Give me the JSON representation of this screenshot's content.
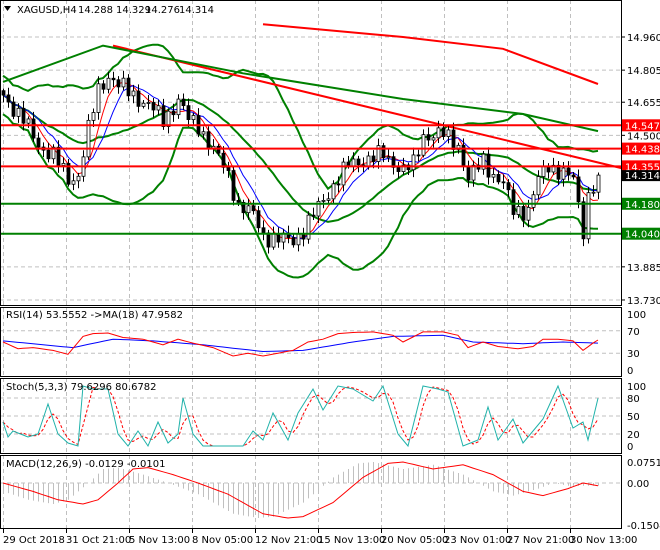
{
  "header": {
    "symbol": "XAGUSD,H4",
    "open": "14.288",
    "high": "14.329",
    "low": "14.276",
    "close": "14.314"
  },
  "colors": {
    "bull": "#ffffff",
    "bear": "#000000",
    "bands": "#008000",
    "resistance": "#ff0000",
    "support": "#008000",
    "rsi": "#ff0000",
    "rsi_ma": "#0000ff",
    "stoch_k": "#20b2aa",
    "stoch_d": "#ff0000",
    "macd_signal": "#ff0000",
    "macd_hist": "#c0c0c0"
  },
  "chart_data": [
    {
      "type": "candlestick",
      "title": "XAGUSD,H4",
      "ylim": [
        13.73,
        15.02
      ],
      "price_ticks": [
        "14.960",
        "14.805",
        "14.655",
        "14.500",
        "13.885",
        "13.730"
      ],
      "levels": [
        {
          "value": 14.547,
          "label": "14.547",
          "color": "#ff0000"
        },
        {
          "value": 14.438,
          "label": "14.438",
          "color": "#ff0000"
        },
        {
          "value": 14.355,
          "label": "14.355",
          "color": "#ff0000"
        },
        {
          "value": 14.18,
          "label": "14.180",
          "color": "#008000"
        },
        {
          "value": 14.04,
          "label": "14.040",
          "color": "#008000"
        }
      ],
      "current_price": {
        "value": 14.314,
        "label": "14.314"
      },
      "close_keypoints": [
        [
          0,
          14.689
        ],
        [
          4,
          14.572
        ],
        [
          7,
          14.455
        ],
        [
          10,
          14.408
        ],
        [
          13,
          14.291
        ],
        [
          15,
          14.315
        ],
        [
          17,
          14.525
        ],
        [
          19,
          14.712
        ],
        [
          21,
          14.782
        ],
        [
          23,
          14.735
        ],
        [
          26,
          14.689
        ],
        [
          29,
          14.642
        ],
        [
          32,
          14.572
        ],
        [
          35,
          14.665
        ],
        [
          37,
          14.572
        ],
        [
          39,
          14.548
        ],
        [
          42,
          14.431
        ],
        [
          45,
          14.315
        ],
        [
          47,
          14.174
        ],
        [
          50,
          14.127
        ],
        [
          52,
          14.034
        ],
        [
          55,
          14.011
        ],
        [
          58,
          14.011
        ],
        [
          60,
          14.057
        ],
        [
          62,
          14.127
        ],
        [
          64,
          14.198
        ],
        [
          66,
          14.268
        ],
        [
          69,
          14.361
        ],
        [
          72,
          14.385
        ],
        [
          76,
          14.408
        ],
        [
          80,
          14.338
        ],
        [
          82,
          14.361
        ],
        [
          84,
          14.502
        ],
        [
          88,
          14.502
        ],
        [
          91,
          14.455
        ],
        [
          93,
          14.291
        ],
        [
          96,
          14.385
        ],
        [
          98,
          14.315
        ],
        [
          100,
          14.268
        ],
        [
          102,
          14.151
        ],
        [
          105,
          14.151
        ],
        [
          107,
          14.291
        ],
        [
          109,
          14.361
        ],
        [
          111,
          14.338
        ],
        [
          114,
          14.291
        ],
        [
          116,
          14.057
        ],
        [
          117,
          14.221
        ],
        [
          119,
          14.314
        ]
      ],
      "trendlines": [
        {
          "name": "red-long-ma",
          "color": "#ff0000",
          "points": [
            [
              52,
              15.02
            ],
            [
              80,
              14.96
            ],
            [
              100,
              14.905
            ],
            [
              119,
              14.74
            ]
          ]
        },
        {
          "name": "red-trendline",
          "color": "#ff0000",
          "points": [
            [
              22,
              14.92
            ],
            [
              124,
              14.345
            ]
          ]
        },
        {
          "name": "green-long-ma",
          "color": "#008000",
          "points": [
            [
              0,
              14.75
            ],
            [
              20,
              14.92
            ],
            [
              48,
              14.79
            ],
            [
              80,
              14.67
            ],
            [
              104,
              14.6
            ],
            [
              119,
              14.52
            ]
          ]
        }
      ]
    },
    {
      "type": "line",
      "title": "RSI(14) 53.5552  ->MA(18) 47.9582",
      "ylim": [
        0,
        100
      ],
      "ticks": [
        "100",
        "70",
        "30",
        "0"
      ],
      "series": [
        {
          "name": "RSI(14)",
          "points": [
            [
              0,
              50
            ],
            [
              3,
              38
            ],
            [
              6,
              40
            ],
            [
              10,
              35
            ],
            [
              13,
              28
            ],
            [
              16,
              60
            ],
            [
              18,
              65
            ],
            [
              21,
              66
            ],
            [
              24,
              58
            ],
            [
              28,
              55
            ],
            [
              32,
              45
            ],
            [
              35,
              55
            ],
            [
              38,
              48
            ],
            [
              42,
              40
            ],
            [
              46,
              25
            ],
            [
              49,
              30
            ],
            [
              52,
              25
            ],
            [
              55,
              30
            ],
            [
              58,
              35
            ],
            [
              61,
              50
            ],
            [
              64,
              55
            ],
            [
              67,
              65
            ],
            [
              70,
              67
            ],
            [
              74,
              68
            ],
            [
              78,
              62
            ],
            [
              80,
              50
            ],
            [
              84,
              68
            ],
            [
              88,
              68
            ],
            [
              91,
              62
            ],
            [
              93,
              40
            ],
            [
              96,
              50
            ],
            [
              99,
              42
            ],
            [
              103,
              38
            ],
            [
              106,
              42
            ],
            [
              108,
              55
            ],
            [
              111,
              55
            ],
            [
              114,
              52
            ],
            [
              116,
              35
            ],
            [
              118,
              48
            ],
            [
              119,
              53.6
            ]
          ]
        },
        {
          "name": "MA(18)",
          "points": [
            [
              0,
              52
            ],
            [
              8,
              45
            ],
            [
              14,
              40
            ],
            [
              22,
              55
            ],
            [
              30,
              52
            ],
            [
              40,
              45
            ],
            [
              52,
              33
            ],
            [
              60,
              35
            ],
            [
              70,
              50
            ],
            [
              78,
              60
            ],
            [
              88,
              62
            ],
            [
              94,
              50
            ],
            [
              104,
              47
            ],
            [
              112,
              50
            ],
            [
              119,
              48
            ]
          ]
        }
      ]
    },
    {
      "type": "line",
      "title": "Stoch(5,3,3) 79.6296 80.6782",
      "ylim": [
        0,
        100
      ],
      "ticks": [
        "100",
        "80",
        "50",
        "20",
        "0"
      ],
      "series": [
        {
          "name": "%K",
          "points": [
            [
              0,
              40
            ],
            [
              1,
              15
            ],
            [
              2,
              25
            ],
            [
              5,
              15
            ],
            [
              7,
              20
            ],
            [
              9,
              70
            ],
            [
              11,
              20
            ],
            [
              13,
              5
            ],
            [
              15,
              0
            ],
            [
              16,
              100
            ],
            [
              18,
              95
            ],
            [
              21,
              95
            ],
            [
              23,
              20
            ],
            [
              25,
              0
            ],
            [
              27,
              25
            ],
            [
              29,
              0
            ],
            [
              31,
              40
            ],
            [
              33,
              5
            ],
            [
              35,
              20
            ],
            [
              36,
              80
            ],
            [
              38,
              20
            ],
            [
              40,
              0
            ],
            [
              48,
              0
            ],
            [
              50,
              25
            ],
            [
              52,
              10
            ],
            [
              54,
              55
            ],
            [
              57,
              10
            ],
            [
              59,
              55
            ],
            [
              62,
              95
            ],
            [
              64,
              60
            ],
            [
              67,
              100
            ],
            [
              70,
              95
            ],
            [
              74,
              75
            ],
            [
              76,
              100
            ],
            [
              79,
              20
            ],
            [
              81,
              0
            ],
            [
              84,
              100
            ],
            [
              87,
              95
            ],
            [
              89,
              90
            ],
            [
              92,
              0
            ],
            [
              95,
              10
            ],
            [
              97,
              65
            ],
            [
              99,
              10
            ],
            [
              102,
              45
            ],
            [
              104,
              5
            ],
            [
              108,
              45
            ],
            [
              111,
              100
            ],
            [
              114,
              30
            ],
            [
              116,
              40
            ],
            [
              117,
              10
            ],
            [
              119,
              79.6
            ]
          ]
        }
      ]
    },
    {
      "type": "bar+line",
      "title": "MACD(12,26,9) -0.0129 -0.0101",
      "ylim": [
        -0.1504,
        0.0751
      ],
      "ticks": [
        "0.0751",
        "0.00",
        "-0.1504"
      ],
      "series": [
        {
          "name": "signal",
          "points": [
            [
              0,
              0
            ],
            [
              6,
              -0.03
            ],
            [
              11,
              -0.06
            ],
            [
              16,
              -0.075
            ],
            [
              19,
              -0.06
            ],
            [
              23,
              0
            ],
            [
              26,
              0.05
            ],
            [
              29,
              0.055
            ],
            [
              34,
              0.03
            ],
            [
              39,
              0
            ],
            [
              45,
              -0.04
            ],
            [
              52,
              -0.11
            ],
            [
              57,
              -0.125
            ],
            [
              60,
              -0.12
            ],
            [
              66,
              -0.07
            ],
            [
              72,
              0.02
            ],
            [
              77,
              0.07
            ],
            [
              80,
              0.075
            ],
            [
              86,
              0.05
            ],
            [
              92,
              0.065
            ],
            [
              98,
              0.03
            ],
            [
              104,
              -0.03
            ],
            [
              108,
              -0.045
            ],
            [
              113,
              -0.02
            ],
            [
              116,
              0
            ],
            [
              119,
              -0.01
            ]
          ]
        }
      ]
    }
  ],
  "time_axis": [
    "29 Oct 2018",
    "31 Oct 21:00",
    "5 Nov 13:00",
    "8 Nov 05:00",
    "12 Nov 21:00",
    "15 Nov 13:00",
    "20 Nov 05:00",
    "23 Nov 01:00",
    "27 Nov 21:00",
    "30 Nov 13:00"
  ]
}
